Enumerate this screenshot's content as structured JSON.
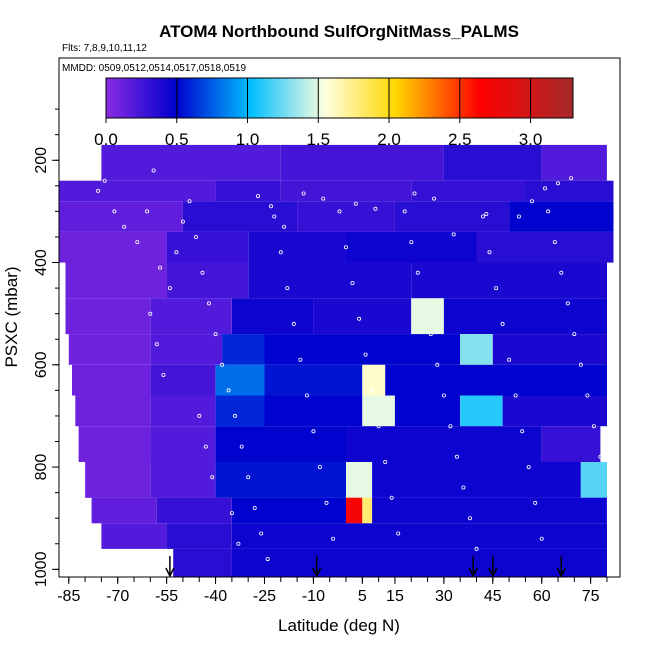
{
  "chart_data": {
    "type": "heatmap",
    "title": "ATOM4 Northbound SulfOrgNitMass_PALMS",
    "flights_label": "Flts: 7,8,9,10,11,12",
    "dates_label": "MMDD: 0509,0512,0514,0517,0518,0519",
    "xlabel": "Latitude (deg N)",
    "ylabel": "PSXC (mbar)",
    "xlim": [
      -88,
      84
    ],
    "ylim": [
      1015,
      0
    ],
    "x_ticks": [
      "-85",
      "-70",
      "-55",
      "-40",
      "-25",
      "-10",
      "5",
      "15",
      "30",
      "45",
      "60",
      "75"
    ],
    "x_tick_values": [
      -85,
      -70,
      -55,
      -40,
      -25,
      -10,
      5,
      15,
      30,
      45,
      60,
      75
    ],
    "y_ticks": [
      "200",
      "400",
      "600",
      "800",
      "1000"
    ],
    "y_tick_values": [
      200,
      400,
      600,
      800,
      1000
    ],
    "colorbar": {
      "ticks": [
        "0.0",
        "0.5",
        "1.0",
        "1.5",
        "2.0",
        "2.5",
        "3.0"
      ],
      "tick_values": [
        0,
        0.5,
        1.0,
        1.5,
        2.0,
        2.5,
        3.0
      ],
      "range": [
        0,
        3.3
      ],
      "colors": [
        "#8a2be2",
        "#0000cd",
        "#00bfff",
        "#ffffe0",
        "#ffd700",
        "#ff0000",
        "#a52a2a"
      ],
      "color_positions": [
        0.0,
        0.15,
        0.31,
        0.47,
        0.62,
        0.8,
        1.0
      ]
    },
    "pressure_bands": [
      {
        "p": [
          170,
          240
        ],
        "cells": [
          [
            -75,
            -20,
            0.2
          ],
          [
            -20,
            30,
            0.25
          ],
          [
            30,
            60,
            0.35
          ],
          [
            60,
            80,
            0.2
          ]
        ]
      },
      {
        "p": [
          240,
          280
        ],
        "cells": [
          [
            -88,
            -40,
            0.2
          ],
          [
            -40,
            -20,
            0.3
          ],
          [
            -20,
            20,
            0.25
          ],
          [
            20,
            55,
            0.3
          ],
          [
            55,
            82,
            0.35
          ]
        ]
      },
      {
        "p": [
          280,
          340
        ],
        "cells": [
          [
            -88,
            -50,
            0.15
          ],
          [
            -50,
            -15,
            0.35
          ],
          [
            -15,
            15,
            0.3
          ],
          [
            15,
            50,
            0.35
          ],
          [
            50,
            82,
            0.5
          ]
        ]
      },
      {
        "p": [
          340,
          400
        ],
        "cells": [
          [
            -88,
            -55,
            0.1
          ],
          [
            -55,
            -30,
            0.3
          ],
          [
            -30,
            0,
            0.4
          ],
          [
            0,
            40,
            0.45
          ],
          [
            40,
            82,
            0.35
          ]
        ]
      },
      {
        "p": [
          400,
          470
        ],
        "cells": [
          [
            -86,
            -55,
            0.1
          ],
          [
            -55,
            -30,
            0.25
          ],
          [
            -30,
            20,
            0.4
          ],
          [
            20,
            80,
            0.4
          ]
        ]
      },
      {
        "p": [
          470,
          540
        ],
        "cells": [
          [
            -86,
            -60,
            0.1
          ],
          [
            -60,
            -35,
            0.2
          ],
          [
            -35,
            -10,
            0.45
          ],
          [
            -10,
            20,
            0.4
          ],
          [
            20,
            30,
            1.5
          ],
          [
            30,
            80,
            0.45
          ]
        ]
      },
      {
        "p": [
          540,
          600
        ],
        "cells": [
          [
            -85,
            -60,
            0.1
          ],
          [
            -60,
            -38,
            0.2
          ],
          [
            -38,
            -25,
            0.6
          ],
          [
            -25,
            35,
            0.5
          ],
          [
            35,
            45,
            1.3
          ],
          [
            45,
            80,
            0.4
          ]
        ]
      },
      {
        "p": [
          600,
          660
        ],
        "cells": [
          [
            -84,
            -60,
            0.1
          ],
          [
            -60,
            -40,
            0.25
          ],
          [
            -40,
            -25,
            0.8
          ],
          [
            -25,
            5,
            0.55
          ],
          [
            5,
            12,
            1.6
          ],
          [
            12,
            80,
            0.5
          ]
        ]
      },
      {
        "p": [
          660,
          720
        ],
        "cells": [
          [
            -83,
            -60,
            0.1
          ],
          [
            -60,
            -40,
            0.2
          ],
          [
            -40,
            -25,
            0.6
          ],
          [
            -25,
            5,
            0.5
          ],
          [
            5,
            15,
            1.5
          ],
          [
            15,
            35,
            0.5
          ],
          [
            35,
            48,
            1.1
          ],
          [
            48,
            80,
            0.4
          ]
        ]
      },
      {
        "p": [
          720,
          790
        ],
        "cells": [
          [
            -82,
            -60,
            0.1
          ],
          [
            -60,
            -40,
            0.2
          ],
          [
            -40,
            0,
            0.5
          ],
          [
            0,
            60,
            0.45
          ],
          [
            60,
            78,
            0.3
          ]
        ]
      },
      {
        "p": [
          790,
          860
        ],
        "cells": [
          [
            -80,
            -60,
            0.1
          ],
          [
            -60,
            -40,
            0.2
          ],
          [
            -40,
            0,
            0.55
          ],
          [
            0,
            8,
            1.5
          ],
          [
            8,
            72,
            0.45
          ],
          [
            72,
            80,
            1.2
          ]
        ]
      },
      {
        "p": [
          860,
          910
        ],
        "cells": [
          [
            -78,
            -58,
            0.15
          ],
          [
            -58,
            -35,
            0.3
          ],
          [
            -35,
            0,
            0.5
          ],
          [
            0,
            5,
            2.7
          ],
          [
            5,
            8,
            1.8
          ],
          [
            8,
            80,
            0.45
          ]
        ]
      },
      {
        "p": [
          910,
          960
        ],
        "cells": [
          [
            -75,
            -55,
            0.2
          ],
          [
            -55,
            -35,
            0.35
          ],
          [
            -35,
            80,
            0.45
          ]
        ]
      },
      {
        "p": [
          960,
          1015
        ],
        "cells": [
          [
            -53,
            -35,
            0.35
          ],
          [
            -35,
            80,
            0.45
          ]
        ]
      }
    ],
    "profile_markers_lat": [
      -54,
      -9,
      39,
      45,
      66
    ],
    "sample_points": [
      [
        -82,
        220
      ],
      [
        -79,
        230
      ],
      [
        -76,
        260
      ],
      [
        -74,
        240
      ],
      [
        -71,
        300
      ],
      [
        -68,
        330
      ],
      [
        -64,
        360
      ],
      [
        -61,
        300
      ],
      [
        -59,
        220
      ],
      [
        -57,
        410
      ],
      [
        -54,
        450
      ],
      [
        -52,
        380
      ],
      [
        -50,
        320
      ],
      [
        -48,
        280
      ],
      [
        -46,
        350
      ],
      [
        -44,
        420
      ],
      [
        -42,
        480
      ],
      [
        -40,
        540
      ],
      [
        -38,
        600
      ],
      [
        -36,
        650
      ],
      [
        -34,
        700
      ],
      [
        -32,
        760
      ],
      [
        -30,
        820
      ],
      [
        -28,
        880
      ],
      [
        -26,
        930
      ],
      [
        -24,
        980
      ],
      [
        -22,
        310
      ],
      [
        -20,
        380
      ],
      [
        -18,
        450
      ],
      [
        -16,
        520
      ],
      [
        -14,
        590
      ],
      [
        -12,
        660
      ],
      [
        -10,
        730
      ],
      [
        -8,
        800
      ],
      [
        -6,
        870
      ],
      [
        -4,
        940
      ],
      [
        -2,
        300
      ],
      [
        0,
        370
      ],
      [
        2,
        440
      ],
      [
        4,
        510
      ],
      [
        6,
        580
      ],
      [
        8,
        650
      ],
      [
        10,
        720
      ],
      [
        12,
        790
      ],
      [
        14,
        860
      ],
      [
        16,
        930
      ],
      [
        18,
        300
      ],
      [
        20,
        360
      ],
      [
        22,
        420
      ],
      [
        24,
        480
      ],
      [
        26,
        540
      ],
      [
        28,
        600
      ],
      [
        30,
        660
      ],
      [
        32,
        720
      ],
      [
        34,
        780
      ],
      [
        36,
        840
      ],
      [
        38,
        900
      ],
      [
        40,
        960
      ],
      [
        42,
        310
      ],
      [
        44,
        380
      ],
      [
        46,
        450
      ],
      [
        48,
        520
      ],
      [
        50,
        590
      ],
      [
        52,
        660
      ],
      [
        54,
        730
      ],
      [
        56,
        800
      ],
      [
        58,
        870
      ],
      [
        60,
        940
      ],
      [
        62,
        300
      ],
      [
        64,
        360
      ],
      [
        66,
        420
      ],
      [
        68,
        480
      ],
      [
        70,
        540
      ],
      [
        72,
        600
      ],
      [
        74,
        660
      ],
      [
        76,
        720
      ],
      [
        78,
        780
      ],
      [
        -60,
        500
      ],
      [
        -58,
        560
      ],
      [
        -56,
        620
      ],
      [
        -45,
        700
      ],
      [
        -43,
        760
      ],
      [
        -41,
        820
      ],
      [
        -35,
        890
      ],
      [
        -33,
        950
      ],
      [
        -27,
        270
      ],
      [
        -23,
        290
      ],
      [
        -19,
        330
      ],
      [
        -13,
        265
      ],
      [
        -7,
        275
      ],
      [
        3,
        285
      ],
      [
        9,
        295
      ],
      [
        21,
        265
      ],
      [
        27,
        275
      ],
      [
        33,
        345
      ],
      [
        43,
        305
      ],
      [
        53,
        310
      ],
      [
        57,
        280
      ],
      [
        61,
        255
      ],
      [
        65,
        245
      ],
      [
        69,
        235
      ]
    ]
  }
}
